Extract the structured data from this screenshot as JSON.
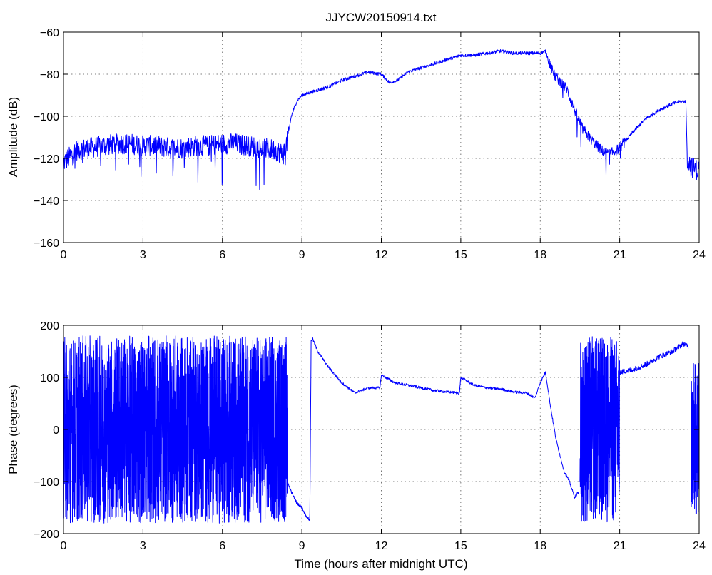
{
  "title": "JJYCW20150914.txt",
  "xlabel": "Time (hours after midnight UTC)",
  "colors": {
    "trace": "#0000ff",
    "axes": "#000000",
    "background": "#ffffff"
  },
  "chart_data": [
    {
      "type": "line",
      "ylabel": "Amplitude (dB)",
      "xlim": [
        0,
        24
      ],
      "ylim": [
        -160,
        -60
      ],
      "xticks": [
        0,
        3,
        6,
        9,
        12,
        15,
        18,
        21,
        24
      ],
      "yticks": [
        -160,
        -140,
        -120,
        -100,
        -80,
        -60
      ],
      "grid": true,
      "series": [
        {
          "x": [
            0,
            0.25,
            0.5,
            1,
            1.5,
            2,
            2.5,
            3,
            3.5,
            4,
            4.5,
            5,
            5.5,
            6,
            6.5,
            7,
            7.5,
            8,
            8.3,
            8.45,
            8.6,
            8.8,
            9,
            9.5,
            10,
            10.5,
            11,
            11.5,
            12,
            12.3,
            12.6,
            13,
            13.5,
            14,
            14.5,
            15,
            15.5,
            16,
            16.5,
            17,
            17.5,
            18,
            18.2,
            18.5,
            19,
            19.3,
            19.6,
            20,
            20.3,
            20.6,
            20.9,
            21.2,
            21.6,
            22,
            22.5,
            23,
            23.3,
            23.5,
            23.55,
            23.7,
            24
          ],
          "values": [
            -122,
            -119,
            -116,
            -115,
            -114,
            -113,
            -113,
            -114,
            -114,
            -115,
            -115,
            -114,
            -114,
            -113,
            -113,
            -114,
            -115,
            -116,
            -118,
            -112,
            -100,
            -93,
            -90,
            -88,
            -86,
            -83,
            -81,
            -79,
            -80,
            -84,
            -83,
            -79,
            -77,
            -75,
            -73,
            -71,
            -71,
            -70,
            -69,
            -70,
            -70,
            -70,
            -69,
            -80,
            -87,
            -97,
            -106,
            -112,
            -116,
            -118,
            -116,
            -112,
            -106,
            -101,
            -97,
            -94,
            -93,
            -93,
            -120,
            -124,
            -126
          ]
        }
      ]
    },
    {
      "type": "line",
      "ylabel": "Phase (degrees)",
      "xlim": [
        0,
        24
      ],
      "ylim": [
        -200,
        200
      ],
      "xticks": [
        0,
        3,
        6,
        9,
        12,
        15,
        18,
        21,
        24
      ],
      "yticks": [
        -200,
        -100,
        0,
        100,
        200
      ],
      "grid": true,
      "series": [
        {
          "x": [
            8.45,
            8.6,
            8.8,
            9,
            9.15,
            9.3,
            9.35,
            9.4,
            9.6,
            10,
            10.5,
            11,
            11.5,
            11.95,
            12,
            12.5,
            13,
            13.5,
            14,
            14.5,
            14.95,
            15,
            15.5,
            16,
            16.5,
            17,
            17.5,
            17.8,
            18,
            18.2,
            18.4,
            18.6,
            18.9,
            19.1,
            19.3,
            19.45
          ],
          "values": [
            -100,
            -120,
            -140,
            -150,
            -165,
            -175,
            170,
            175,
            150,
            120,
            90,
            70,
            80,
            80,
            105,
            90,
            85,
            80,
            75,
            72,
            70,
            100,
            85,
            80,
            78,
            72,
            70,
            60,
            90,
            110,
            40,
            -20,
            -80,
            -100,
            -130,
            -120
          ]
        }
      ],
      "noise_bands": [
        {
          "x": [
            0,
            8.45
          ],
          "range": [
            -180,
            180
          ]
        },
        {
          "x": [
            19.5,
            21.0
          ],
          "range": [
            -180,
            180
          ]
        },
        {
          "x": [
            23.7,
            24
          ],
          "range": [
            -170,
            130
          ]
        }
      ],
      "tail": {
        "x": [
          21.0,
          21.5,
          22,
          22.5,
          23,
          23.4,
          23.6
        ],
        "values": [
          110,
          115,
          125,
          140,
          150,
          165,
          160
        ]
      }
    }
  ]
}
